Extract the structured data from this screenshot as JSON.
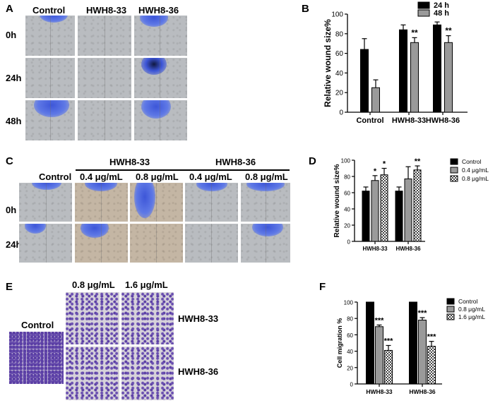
{
  "panels": {
    "A": {
      "letter": "A",
      "columns": [
        "Control",
        "HWH8-33",
        "HWH8-36"
      ],
      "rows": [
        "0h",
        "24h",
        "48h"
      ]
    },
    "C": {
      "letter": "C",
      "groups": [
        "HWH8-33",
        "HWH8-36"
      ],
      "columns": [
        "Control",
        "0.4 μg/mL",
        "0.8 μg/mL",
        "0.4 μg/mL",
        "0.8 μg/mL"
      ],
      "rows": [
        "0h",
        "24h"
      ]
    },
    "E": {
      "letter": "E",
      "control_label": "Control",
      "columns": [
        "0.8 μg/mL",
        "1.6 μg/mL"
      ],
      "rows": [
        "HWH8-33",
        "HWH8-36"
      ]
    }
  },
  "chart_data": [
    {
      "panel": "B",
      "type": "bar",
      "title": "",
      "ylabel": "Relative wound size%",
      "xlabel": "",
      "ylim": [
        0,
        100
      ],
      "yticks": [
        0,
        20,
        40,
        60,
        80,
        100
      ],
      "categories": [
        "Control",
        "HWH8-33",
        "HWH8-36"
      ],
      "legend": "top-right",
      "series": [
        {
          "name": "24 h",
          "color": "#000000",
          "pattern": "solid",
          "values": [
            64,
            84,
            89
          ],
          "errors": [
            11,
            5,
            3
          ],
          "sig": [
            "",
            "",
            ""
          ]
        },
        {
          "name": "48 h",
          "color": "#9a9a9a",
          "pattern": "solid",
          "values": [
            25,
            71,
            71
          ],
          "errors": [
            8,
            5,
            7
          ],
          "sig": [
            "",
            "**",
            "**"
          ]
        }
      ]
    },
    {
      "panel": "D",
      "type": "bar",
      "title": "",
      "ylabel": "Relative wound size%",
      "xlabel": "",
      "ylim": [
        0,
        100
      ],
      "yticks": [
        0,
        20,
        40,
        60,
        80,
        100
      ],
      "categories": [
        "HWH8-33",
        "HWH8-36"
      ],
      "legend": "top-right",
      "series": [
        {
          "name": "Control",
          "color": "#000000",
          "pattern": "solid",
          "values": [
            62,
            62
          ],
          "errors": [
            5,
            5
          ],
          "sig": [
            "",
            ""
          ]
        },
        {
          "name": "0.4 μg/mL",
          "color": "#9a9a9a",
          "pattern": "solid",
          "values": [
            75,
            77
          ],
          "errors": [
            6,
            15
          ],
          "sig": [
            "*",
            ""
          ]
        },
        {
          "name": "0.8 μg/mL",
          "color": "#ffffff",
          "pattern": "checker",
          "values": [
            82,
            88
          ],
          "errors": [
            8,
            5
          ],
          "sig": [
            "*",
            "**"
          ]
        }
      ]
    },
    {
      "panel": "F",
      "type": "bar",
      "title": "",
      "ylabel": "Cell migration %",
      "xlabel": "",
      "ylim": [
        0,
        100
      ],
      "yticks": [
        0,
        20,
        40,
        60,
        80,
        100
      ],
      "categories": [
        "HWH8-33",
        "HWH8-36"
      ],
      "legend": "top-right",
      "series": [
        {
          "name": "Control",
          "color": "#000000",
          "pattern": "solid",
          "values": [
            100,
            100
          ],
          "errors": [
            0,
            0
          ],
          "sig": [
            "",
            ""
          ]
        },
        {
          "name": "0.8 μg/mL",
          "color": "#9a9a9a",
          "pattern": "solid",
          "values": [
            70,
            78
          ],
          "errors": [
            2,
            3
          ],
          "sig": [
            "***",
            "***"
          ]
        },
        {
          "name": "1.6 μg/mL",
          "color": "#ffffff",
          "pattern": "checker",
          "values": [
            41,
            46
          ],
          "errors": [
            6,
            6
          ],
          "sig": [
            "***",
            "***"
          ]
        }
      ]
    }
  ]
}
